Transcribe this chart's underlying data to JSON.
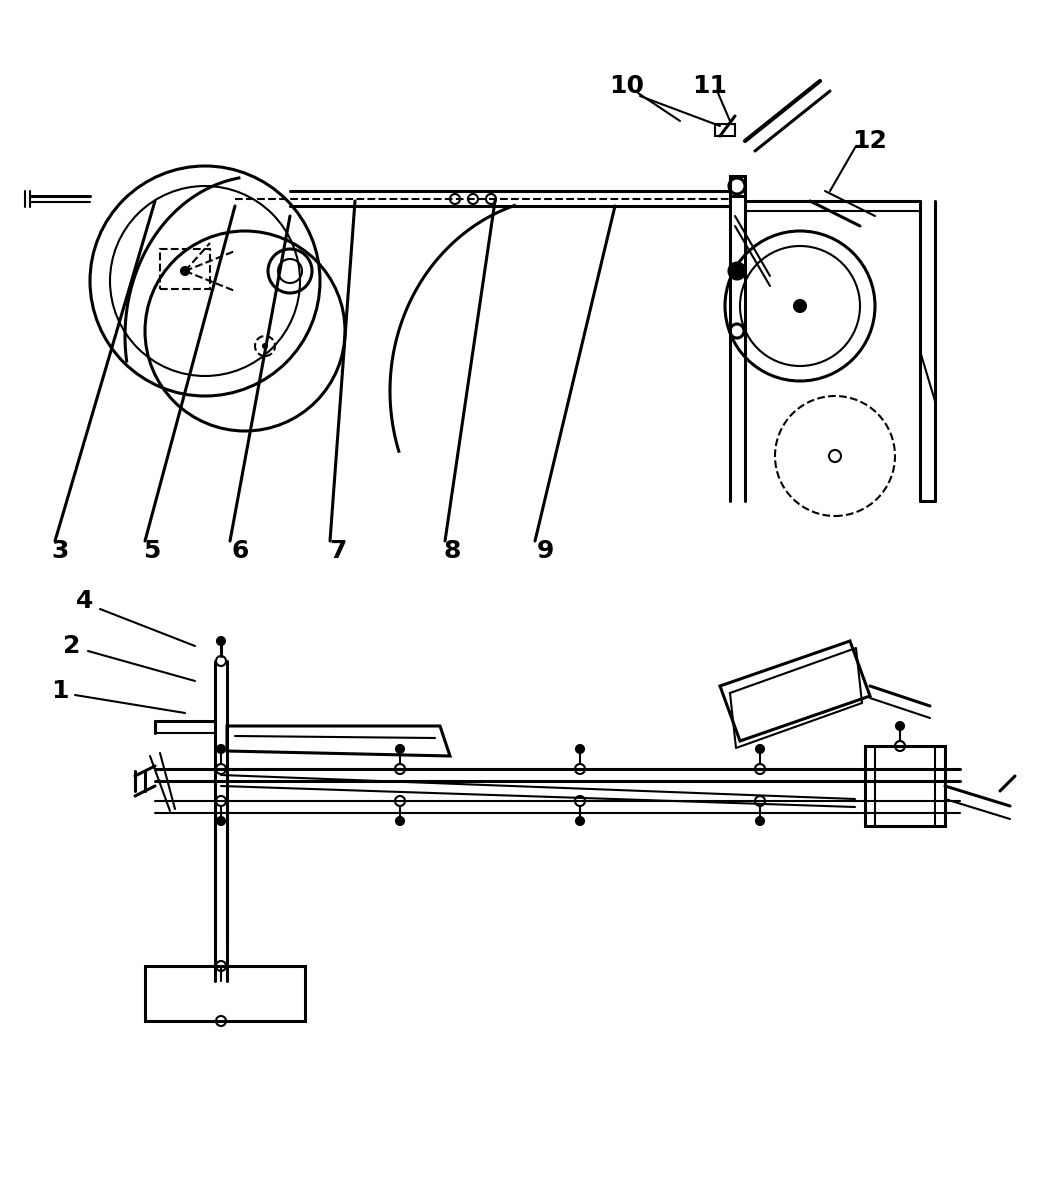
{
  "bg_color": "#ffffff",
  "line_color": "#000000",
  "fig_width": 10.41,
  "fig_height": 12.01,
  "dpi": 100
}
